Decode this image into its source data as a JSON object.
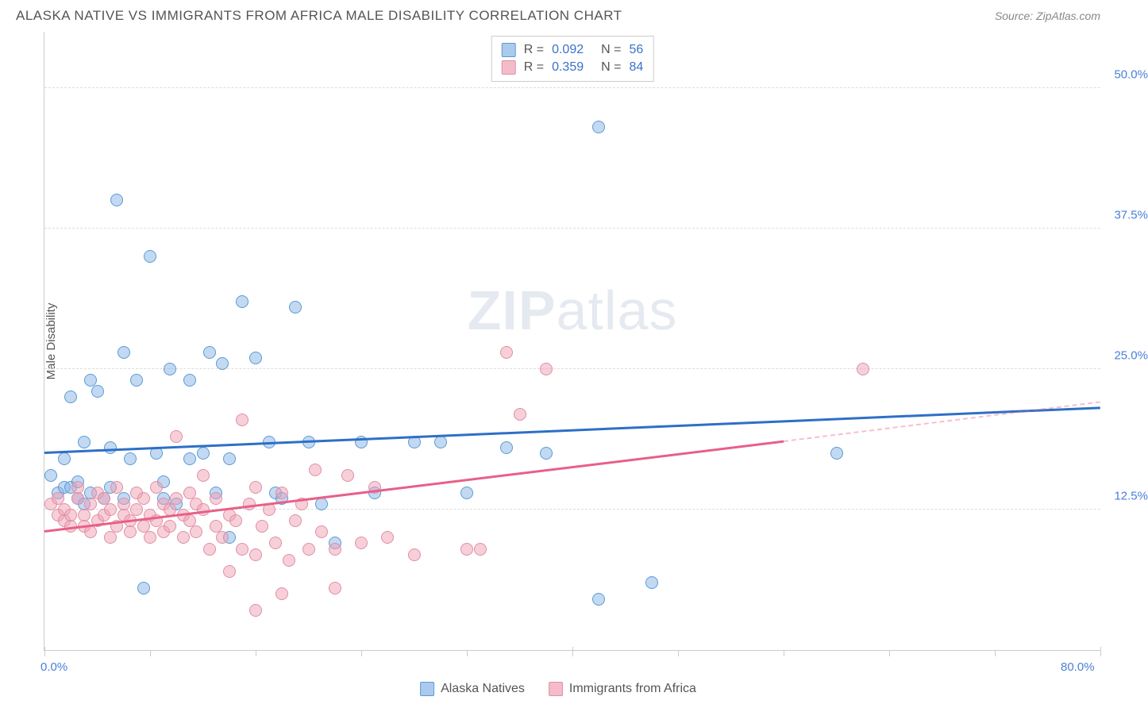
{
  "header": {
    "title": "ALASKA NATIVE VS IMMIGRANTS FROM AFRICA MALE DISABILITY CORRELATION CHART",
    "source": "Source: ZipAtlas.com"
  },
  "chart": {
    "type": "scatter",
    "ylabel": "Male Disability",
    "xlim": [
      0,
      80
    ],
    "ylim": [
      0,
      55
    ],
    "yticks": [
      {
        "value": 12.5,
        "label": "12.5%"
      },
      {
        "value": 25.0,
        "label": "25.0%"
      },
      {
        "value": 37.5,
        "label": "37.5%"
      },
      {
        "value": 50.0,
        "label": "50.0%"
      }
    ],
    "xticks_major": [
      0,
      40,
      80
    ],
    "xtick_labels": [
      {
        "value": 0,
        "label": "0.0%"
      },
      {
        "value": 80,
        "label": "80.0%"
      }
    ],
    "xticks_minor": [
      8,
      16,
      24,
      32,
      48,
      56,
      64,
      72
    ],
    "background_color": "#ffffff",
    "grid_color": "#dddddd",
    "watermark": "ZIPatlas",
    "series": [
      {
        "name": "Alaska Natives",
        "color_fill": "rgba(135,180,230,0.5)",
        "color_stroke": "#5a9bd5",
        "marker_size": 16,
        "R": 0.092,
        "N": 56,
        "trend": {
          "x1": 0,
          "y1": 17.5,
          "x2": 80,
          "y2": 21.5,
          "color": "#2e6fc7"
        },
        "points": [
          [
            0.5,
            15.5
          ],
          [
            1,
            14
          ],
          [
            1.5,
            14.5
          ],
          [
            1.5,
            17
          ],
          [
            2,
            22.5
          ],
          [
            2,
            14.5
          ],
          [
            2.5,
            13.5
          ],
          [
            2.5,
            15
          ],
          [
            3,
            18.5
          ],
          [
            3,
            13
          ],
          [
            3.5,
            24
          ],
          [
            3.5,
            14
          ],
          [
            4,
            23
          ],
          [
            4.5,
            13.5
          ],
          [
            5,
            14.5
          ],
          [
            5,
            18
          ],
          [
            5.5,
            40
          ],
          [
            6,
            26.5
          ],
          [
            6.5,
            17
          ],
          [
            7,
            24
          ],
          [
            7.5,
            5.5
          ],
          [
            8,
            35
          ],
          [
            8.5,
            17.5
          ],
          [
            9,
            13.5
          ],
          [
            9.5,
            25
          ],
          [
            10,
            13
          ],
          [
            11,
            24
          ],
          [
            12,
            17.5
          ],
          [
            12.5,
            26.5
          ],
          [
            13,
            14
          ],
          [
            13.5,
            25.5
          ],
          [
            14,
            17
          ],
          [
            15,
            31
          ],
          [
            16,
            26
          ],
          [
            17,
            18.5
          ],
          [
            17.5,
            14
          ],
          [
            18,
            13.5
          ],
          [
            19,
            30.5
          ],
          [
            20,
            18.5
          ],
          [
            21,
            13
          ],
          [
            22,
            9.5
          ],
          [
            24,
            18.5
          ],
          [
            25,
            14
          ],
          [
            28,
            18.5
          ],
          [
            30,
            18.5
          ],
          [
            32,
            14
          ],
          [
            35,
            18
          ],
          [
            38,
            17.5
          ],
          [
            42,
            46.5
          ],
          [
            42,
            4.5
          ],
          [
            46,
            6
          ],
          [
            60,
            17.5
          ],
          [
            14,
            10
          ],
          [
            11,
            17
          ],
          [
            9,
            15
          ],
          [
            6,
            13.5
          ]
        ]
      },
      {
        "name": "Immigrants from Africa",
        "color_fill": "rgba(240,160,180,0.5)",
        "color_stroke": "#e08fa5",
        "marker_size": 16,
        "R": 0.359,
        "N": 84,
        "trend": {
          "x1": 0,
          "y1": 10.5,
          "x2": 56,
          "y2": 18.5,
          "color": "#e85f88",
          "dash_from_x": 56,
          "dash_to_x": 80,
          "dash_to_y": 22
        },
        "points": [
          [
            0.5,
            13
          ],
          [
            1,
            12
          ],
          [
            1,
            13.5
          ],
          [
            1.5,
            11.5
          ],
          [
            1.5,
            12.5
          ],
          [
            2,
            11
          ],
          [
            2,
            12
          ],
          [
            2.5,
            13.5
          ],
          [
            2.5,
            14.5
          ],
          [
            3,
            11
          ],
          [
            3,
            12
          ],
          [
            3.5,
            13
          ],
          [
            3.5,
            10.5
          ],
          [
            4,
            14
          ],
          [
            4,
            11.5
          ],
          [
            4.5,
            12
          ],
          [
            4.5,
            13.5
          ],
          [
            5,
            10
          ],
          [
            5,
            12.5
          ],
          [
            5.5,
            14.5
          ],
          [
            5.5,
            11
          ],
          [
            6,
            12
          ],
          [
            6,
            13
          ],
          [
            6.5,
            10.5
          ],
          [
            6.5,
            11.5
          ],
          [
            7,
            14
          ],
          [
            7,
            12.5
          ],
          [
            7.5,
            11
          ],
          [
            7.5,
            13.5
          ],
          [
            8,
            10
          ],
          [
            8,
            12
          ],
          [
            8.5,
            14.5
          ],
          [
            8.5,
            11.5
          ],
          [
            9,
            13
          ],
          [
            9,
            10.5
          ],
          [
            9.5,
            12.5
          ],
          [
            9.5,
            11
          ],
          [
            10,
            19
          ],
          [
            10,
            13.5
          ],
          [
            10.5,
            10
          ],
          [
            10.5,
            12
          ],
          [
            11,
            14
          ],
          [
            11,
            11.5
          ],
          [
            11.5,
            13
          ],
          [
            11.5,
            10.5
          ],
          [
            12,
            15.5
          ],
          [
            12,
            12.5
          ],
          [
            12.5,
            9
          ],
          [
            13,
            11
          ],
          [
            13,
            13.5
          ],
          [
            13.5,
            10
          ],
          [
            14,
            12
          ],
          [
            14.5,
            11.5
          ],
          [
            15,
            20.5
          ],
          [
            15,
            9
          ],
          [
            15.5,
            13
          ],
          [
            16,
            8.5
          ],
          [
            16,
            14.5
          ],
          [
            16.5,
            11
          ],
          [
            17,
            12.5
          ],
          [
            17.5,
            9.5
          ],
          [
            18,
            14
          ],
          [
            18.5,
            8
          ],
          [
            19,
            11.5
          ],
          [
            19.5,
            13
          ],
          [
            20,
            9
          ],
          [
            20.5,
            16
          ],
          [
            21,
            10.5
          ],
          [
            22,
            9
          ],
          [
            23,
            15.5
          ],
          [
            24,
            9.5
          ],
          [
            25,
            14.5
          ],
          [
            26,
            10
          ],
          [
            28,
            8.5
          ],
          [
            16,
            3.5
          ],
          [
            32,
            9
          ],
          [
            33,
            9
          ],
          [
            35,
            26.5
          ],
          [
            36,
            21
          ],
          [
            38,
            25
          ],
          [
            62,
            25
          ],
          [
            22,
            5.5
          ],
          [
            18,
            5
          ],
          [
            14,
            7
          ]
        ]
      }
    ]
  },
  "stats_legend": {
    "rows": [
      {
        "swatch": "blue",
        "R": "0.092",
        "N": "56"
      },
      {
        "swatch": "pink",
        "R": "0.359",
        "N": "84"
      }
    ]
  },
  "bottom_legend": {
    "items": [
      {
        "swatch": "blue",
        "label": "Alaska Natives"
      },
      {
        "swatch": "pink",
        "label": "Immigrants from Africa"
      }
    ]
  }
}
